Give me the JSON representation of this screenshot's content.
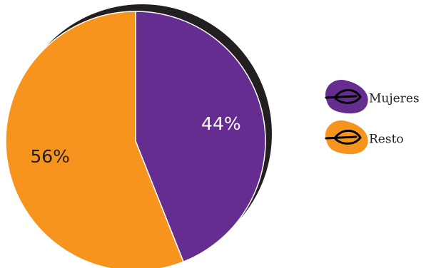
{
  "chart_data": {
    "type": "pie",
    "slices": [
      {
        "label": "Mujeres",
        "value": 44,
        "display": "44%",
        "color": "#662d91",
        "label_color": "#ffffff"
      },
      {
        "label": "Resto",
        "value": 56,
        "display": "56%",
        "color": "#f7941d",
        "label_color": "#231f20"
      }
    ],
    "start": "12 o'clock",
    "direction": "clockwise",
    "legend": {
      "placement": "right",
      "icon": "leaf-icon"
    },
    "shadow_color": "#231f20",
    "edge_color": "#ffffff",
    "icon_color": "#000000"
  }
}
